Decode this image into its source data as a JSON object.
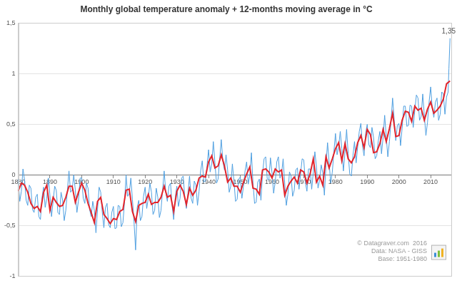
{
  "chart_data": {
    "type": "line",
    "title": "Monthly global temperature anomaly + 12-months moving average in °C",
    "series": [
      {
        "color": "#4f9fe0",
        "x": [
          1880,
          1880.5,
          1881,
          1881.5,
          1882,
          1882.5,
          1883,
          1883.5,
          1884,
          1884.5,
          1885,
          1885.5,
          1886,
          1886.5,
          1887,
          1887.5,
          1888,
          1888.5,
          1889,
          1889.5,
          1890,
          1890.5,
          1891,
          1891.5,
          1892,
          1892.5,
          1893,
          1893.5,
          1894,
          1894.5,
          1895,
          1895.5,
          1896,
          1896.5,
          1897,
          1897.5,
          1898,
          1898.5,
          1899,
          1899.5,
          1900,
          1900.5,
          1901,
          1901.5,
          1902,
          1902.5,
          1903,
          1903.5,
          1904,
          1904.5,
          1905,
          1905.5,
          1906,
          1906.5,
          1907,
          1907.5,
          1908,
          1908.5,
          1909,
          1909.5,
          1910,
          1910.5,
          1911,
          1911.5,
          1912,
          1912.5,
          1913,
          1913.5,
          1914,
          1914.5,
          1915,
          1915.5,
          1916,
          1916.5,
          1917,
          1917.5,
          1918,
          1918.5,
          1919,
          1919.5,
          1920,
          1920.5,
          1921,
          1921.5,
          1922,
          1922.5,
          1923,
          1923.5,
          1924,
          1924.5,
          1925,
          1925.5,
          1926,
          1926.5,
          1927,
          1927.5,
          1928,
          1928.5,
          1929,
          1929.5,
          1930,
          1930.5,
          1931,
          1931.5,
          1932,
          1932.5,
          1933,
          1933.5,
          1934,
          1934.5,
          1935,
          1935.5,
          1936,
          1936.5,
          1937,
          1937.5,
          1938,
          1938.5,
          1939,
          1939.5,
          1940,
          1940.5,
          1941,
          1941.5,
          1942,
          1942.5,
          1943,
          1943.5,
          1944,
          1944.5,
          1945,
          1945.5,
          1946,
          1946.5,
          1947,
          1947.5,
          1948,
          1948.5,
          1949,
          1949.5,
          1950,
          1950.5,
          1951,
          1951.5,
          1952,
          1952.5,
          1953,
          1953.5,
          1954,
          1954.5,
          1955,
          1955.5,
          1956,
          1956.5,
          1957,
          1957.5,
          1958,
          1958.5,
          1959,
          1959.5,
          1960,
          1960.5,
          1961,
          1961.5,
          1962,
          1962.5,
          1963,
          1963.5,
          1964,
          1964.5,
          1965,
          1965.5,
          1966,
          1966.5,
          1967,
          1967.5,
          1968,
          1968.5,
          1969,
          1969.5,
          1970,
          1970.5,
          1971,
          1971.5,
          1972,
          1972.5,
          1973,
          1973.5,
          1974,
          1974.5,
          1975,
          1975.5,
          1976,
          1976.5,
          1977,
          1977.5,
          1978,
          1978.5,
          1979,
          1979.5,
          1980,
          1980.5,
          1981,
          1981.5,
          1982,
          1982.5,
          1983,
          1983.5,
          1984,
          1984.5,
          1985,
          1985.5,
          1986,
          1986.5,
          1987,
          1987.5,
          1988,
          1988.5,
          1989,
          1989.5,
          1990,
          1990.5,
          1991,
          1991.5,
          1992,
          1992.5,
          1993,
          1993.5,
          1994,
          1994.5,
          1995,
          1995.5,
          1996,
          1996.5,
          1997,
          1997.5,
          1998,
          1998.5,
          1999,
          1999.5,
          2000,
          2000.5,
          2001,
          2001.5,
          2002,
          2002.5,
          2003,
          2003.5,
          2004,
          2004.5,
          2005,
          2005.5,
          2006,
          2006.5,
          2007,
          2007.5,
          2008,
          2008.5,
          2009,
          2009.5,
          2010,
          2010.5,
          2011,
          2011.5,
          2012,
          2012.5,
          2013,
          2013.5,
          2014,
          2014.5,
          2015,
          2015.5,
          2015.75,
          2016.1
        ],
        "values": [
          -0.04,
          -0.26,
          -0.16,
          0.06,
          -0.05,
          -0.25,
          -0.3,
          -0.1,
          -0.13,
          -0.34,
          -0.37,
          -0.22,
          -0.19,
          -0.41,
          -0.44,
          -0.22,
          -0.12,
          -0.32,
          -0.23,
          -0.03,
          -0.2,
          -0.41,
          -0.26,
          -0.11,
          -0.15,
          -0.37,
          -0.39,
          -0.17,
          -0.25,
          -0.45,
          -0.35,
          -0.15,
          0.04,
          -0.17,
          -0.15,
          0,
          -0.15,
          -0.37,
          -0.25,
          -0.03,
          -0.03,
          -0.23,
          -0.28,
          -0.08,
          -0.13,
          -0.34,
          -0.41,
          -0.26,
          -0.35,
          -0.57,
          -0.34,
          -0.12,
          -0.17,
          -0.37,
          -0.52,
          -0.32,
          -0.28,
          -0.49,
          -0.52,
          -0.37,
          -0.31,
          -0.53,
          -0.52,
          -0.3,
          -0.31,
          -0.51,
          -0.47,
          -0.27,
          0,
          -0.21,
          -0.18,
          -0.03,
          -0.24,
          -0.46,
          -0.74,
          -0.32,
          -0.25,
          -0.45,
          -0.41,
          -0.21,
          -0.12,
          -0.33,
          -0.23,
          -0.08,
          -0.17,
          -0.39,
          -0.35,
          -0.13,
          -0.22,
          -0.42,
          -0.35,
          -0.15,
          0.04,
          -0.17,
          -0.26,
          -0.11,
          -0.08,
          -0.3,
          -0.44,
          -0.22,
          -0.11,
          -0.31,
          -0.23,
          -0.03,
          -0.01,
          -0.22,
          -0.33,
          -0.18,
          -0.01,
          -0.23,
          -0.28,
          -0.06,
          -0.1,
          -0.3,
          -0.16,
          0.04,
          0.14,
          -0.07,
          -0.06,
          0.09,
          0.25,
          0.03,
          0.11,
          0.33,
          0.12,
          -0.08,
          -0.04,
          0.16,
          0.35,
          0.14,
          0.05,
          0.2,
          0.05,
          -0.17,
          -0.11,
          0.11,
          -0.06,
          -0.26,
          -0.24,
          -0.04,
          -0.02,
          -0.23,
          -0.11,
          0.04,
          0.13,
          -0.09,
          0,
          0.22,
          -0.08,
          -0.28,
          -0.27,
          -0.07,
          -0.04,
          -0.25,
          0.01,
          0.16,
          0.18,
          -0.04,
          -0.05,
          0.17,
          0.02,
          -0.18,
          -0.07,
          0.13,
          0.18,
          -0.03,
          0.01,
          0.16,
          -0.08,
          -0.3,
          -0.19,
          0.03,
          -0.01,
          -0.21,
          -0.15,
          0.05,
          0.07,
          -0.14,
          0.01,
          0.16,
          0.15,
          -0.07,
          -0.16,
          0.06,
          0.06,
          -0.14,
          0.03,
          0.23,
          0.08,
          -0.13,
          -0.05,
          0.1,
          0.02,
          -0.2,
          0.1,
          0.32,
          0.12,
          -0.08,
          0.03,
          0.23,
          0.41,
          0.2,
          0.28,
          0.43,
          0.26,
          0.04,
          0.23,
          0.45,
          0.21,
          0.01,
          -0.01,
          0.19,
          0.33,
          0.12,
          0.28,
          0.43,
          0.51,
          0.29,
          0.19,
          0.41,
          0.5,
          0.3,
          0.27,
          0.47,
          0.37,
          0.16,
          0.19,
          0.34,
          0.43,
          0.21,
          0.37,
          0.59,
          0.38,
          0.18,
          0.33,
          0.53,
          0.76,
          0.55,
          0.34,
          0.49,
          0.51,
          0.29,
          0.46,
          0.68,
          0.68,
          0.48,
          0.49,
          0.69,
          0.68,
          0.47,
          0.64,
          0.79,
          0.76,
          0.54,
          0.58,
          0.8,
          0.59,
          0.39,
          0.52,
          0.72,
          0.87,
          0.66,
          0.57,
          0.72,
          0.76,
          0.54,
          0.6,
          0.82,
          0.8,
          0.6,
          0.77,
          0.82,
          1.05,
          1.35
        ]
      },
      {
        "color": "#e3242b",
        "x": [
          1880,
          1881,
          1882,
          1883,
          1884,
          1885,
          1886,
          1887,
          1888,
          1889,
          1890,
          1891,
          1892,
          1893,
          1894,
          1895,
          1896,
          1897,
          1898,
          1899,
          1900,
          1901,
          1902,
          1903,
          1904,
          1905,
          1906,
          1907,
          1908,
          1909,
          1910,
          1911,
          1912,
          1913,
          1914,
          1915,
          1916,
          1917,
          1918,
          1919,
          1920,
          1921,
          1922,
          1923,
          1924,
          1925,
          1926,
          1927,
          1928,
          1929,
          1930,
          1931,
          1932,
          1933,
          1934,
          1935,
          1936,
          1937,
          1938,
          1939,
          1940,
          1941,
          1942,
          1943,
          1944,
          1945,
          1946,
          1947,
          1948,
          1949,
          1950,
          1951,
          1952,
          1953,
          1954,
          1955,
          1956,
          1957,
          1958,
          1959,
          1960,
          1961,
          1962,
          1963,
          1964,
          1965,
          1966,
          1967,
          1968,
          1969,
          1970,
          1971,
          1972,
          1973,
          1974,
          1975,
          1976,
          1977,
          1978,
          1979,
          1980,
          1981,
          1982,
          1983,
          1984,
          1985,
          1986,
          1987,
          1988,
          1989,
          1990,
          1991,
          1992,
          1993,
          1994,
          1995,
          1996,
          1997,
          1998,
          1999,
          2000,
          2001,
          2002,
          2003,
          2004,
          2005,
          2006,
          2007,
          2008,
          2009,
          2010,
          2011,
          2012,
          2013,
          2014,
          2015,
          2016.1
        ],
        "values": [
          -0.16,
          -0.08,
          -0.1,
          -0.17,
          -0.28,
          -0.33,
          -0.31,
          -0.36,
          -0.17,
          -0.1,
          -0.35,
          -0.22,
          -0.27,
          -0.31,
          -0.3,
          -0.22,
          -0.11,
          -0.11,
          -0.27,
          -0.17,
          -0.08,
          -0.15,
          -0.28,
          -0.37,
          -0.47,
          -0.26,
          -0.22,
          -0.39,
          -0.43,
          -0.48,
          -0.43,
          -0.44,
          -0.36,
          -0.34,
          -0.15,
          -0.14,
          -0.36,
          -0.46,
          -0.3,
          -0.28,
          -0.27,
          -0.19,
          -0.29,
          -0.27,
          -0.27,
          -0.22,
          -0.11,
          -0.22,
          -0.2,
          -0.36,
          -0.16,
          -0.1,
          -0.16,
          -0.29,
          -0.13,
          -0.2,
          -0.15,
          -0.03,
          -0.01,
          -0.02,
          0.13,
          0.19,
          0.07,
          0.09,
          0.2,
          0.09,
          -0.07,
          -0.03,
          -0.11,
          -0.11,
          -0.17,
          -0.07,
          0.01,
          0.08,
          -0.13,
          -0.14,
          -0.19,
          0.05,
          0.06,
          0.03,
          -0.03,
          0.06,
          0.03,
          0.05,
          -0.2,
          -0.11,
          -0.06,
          -0.02,
          -0.08,
          0.05,
          0.03,
          -0.08,
          0.01,
          0.16,
          -0.07,
          -0.01,
          -0.1,
          0.18,
          0.07,
          0.16,
          0.26,
          0.32,
          0.14,
          0.31,
          0.16,
          0.12,
          0.18,
          0.32,
          0.39,
          0.27,
          0.45,
          0.4,
          0.22,
          0.23,
          0.31,
          0.45,
          0.33,
          0.46,
          0.61,
          0.38,
          0.39,
          0.54,
          0.63,
          0.62,
          0.53,
          0.68,
          0.64,
          0.66,
          0.54,
          0.65,
          0.72,
          0.61,
          0.64,
          0.68,
          0.75,
          0.9,
          0.93
        ]
      }
    ],
    "xlim": [
      1880,
      2016.5
    ],
    "xticks": [
      1880,
      1890,
      1900,
      1910,
      1920,
      1930,
      1940,
      1950,
      1960,
      1970,
      1980,
      1990,
      2000,
      2010
    ],
    "ylim": [
      -1,
      1.5
    ],
    "yticks": [
      -1,
      {
        "value": -0.5,
        "label": "-0,5"
      },
      0,
      {
        "value": 0.5,
        "label": "0,5"
      },
      1,
      {
        "value": 1.5,
        "label": "1,5"
      }
    ],
    "grid": true,
    "annotations": [
      {
        "text": "1,35",
        "x": 2016.1,
        "y": 1.35
      }
    ],
    "source": [
      "© Datagraver.com  2016",
      "Data: NASA - GISS",
      "Base: 1951-1980"
    ]
  }
}
